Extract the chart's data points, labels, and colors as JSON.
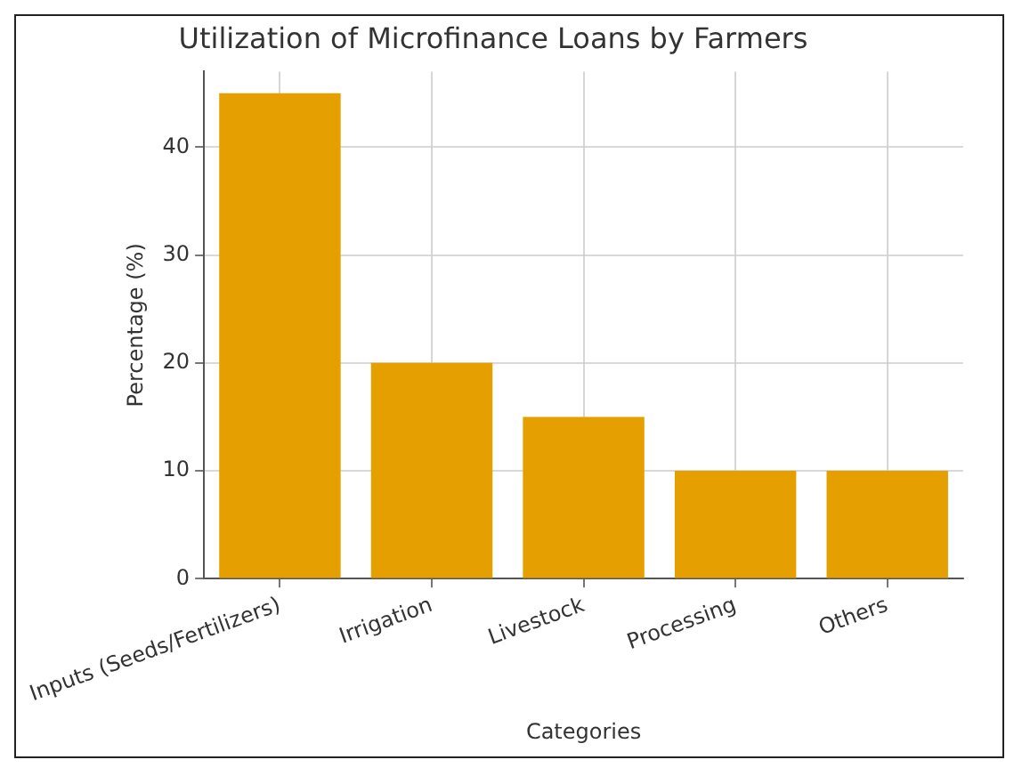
{
  "chart_data": {
    "type": "bar",
    "title": "Utilization of Microfinance Loans by Farmers",
    "xlabel": "Categories",
    "ylabel": "Percentage (%)",
    "categories": [
      "Inputs (Seeds/Fertilizers)",
      "Irrigation",
      "Livestock",
      "Processing",
      "Others"
    ],
    "values": [
      45,
      20,
      15,
      10,
      10
    ],
    "color": "#e5a000",
    "ylim": [
      0,
      47
    ],
    "yticks": [
      0,
      10,
      20,
      30,
      40
    ],
    "grid": true
  }
}
